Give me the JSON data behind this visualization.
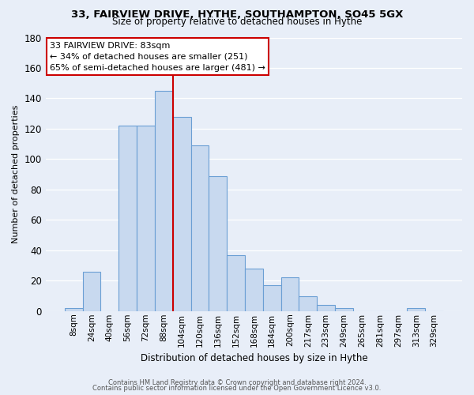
{
  "title": "33, FAIRVIEW DRIVE, HYTHE, SOUTHAMPTON, SO45 5GX",
  "subtitle": "Size of property relative to detached houses in Hythe",
  "xlabel": "Distribution of detached houses by size in Hythe",
  "ylabel": "Number of detached properties",
  "bar_labels": [
    "8sqm",
    "24sqm",
    "40sqm",
    "56sqm",
    "72sqm",
    "88sqm",
    "104sqm",
    "120sqm",
    "136sqm",
    "152sqm",
    "168sqm",
    "184sqm",
    "200sqm",
    "217sqm",
    "233sqm",
    "249sqm",
    "265sqm",
    "281sqm",
    "297sqm",
    "313sqm",
    "329sqm"
  ],
  "bar_values": [
    2,
    26,
    0,
    122,
    122,
    145,
    128,
    109,
    89,
    37,
    28,
    17,
    22,
    10,
    4,
    2,
    0,
    0,
    0,
    2,
    0
  ],
  "bar_color": "#c8d9ef",
  "bar_edge_color": "#6b9fd4",
  "ylim": [
    0,
    180
  ],
  "yticks": [
    0,
    20,
    40,
    60,
    80,
    100,
    120,
    140,
    160,
    180
  ],
  "property_line_x": 5.5,
  "annotation_title": "33 FAIRVIEW DRIVE: 83sqm",
  "annotation_line1": "← 34% of detached houses are smaller (251)",
  "annotation_line2": "65% of semi-detached houses are larger (481) →",
  "annotation_box_color": "#ffffff",
  "annotation_box_edge_color": "#cc0000",
  "vline_color": "#cc0000",
  "footer1": "Contains HM Land Registry data © Crown copyright and database right 2024.",
  "footer2": "Contains public sector information licensed under the Open Government Licence v3.0.",
  "background_color": "#e8eef8",
  "plot_bg_color": "#e8eef8",
  "grid_color": "#ffffff",
  "title_fontsize": 9.5,
  "subtitle_fontsize": 8.5,
  "xlabel_fontsize": 8.5,
  "ylabel_fontsize": 8.0,
  "tick_fontsize": 7.5,
  "ytick_fontsize": 8.5,
  "footer_fontsize": 6.0,
  "annot_fontsize": 8.0
}
